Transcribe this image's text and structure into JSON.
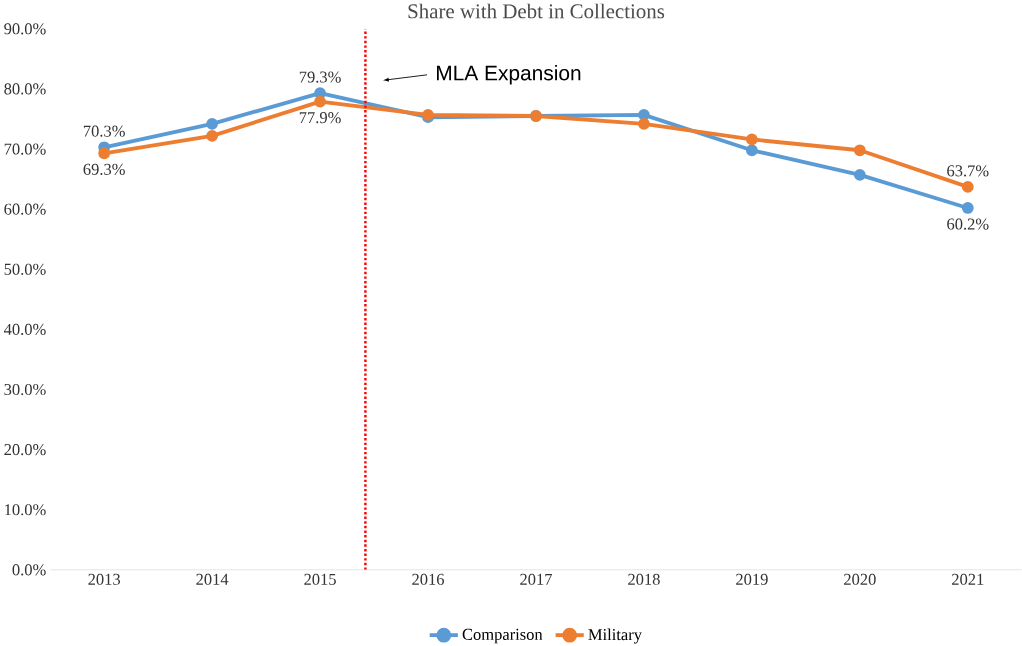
{
  "chart_data": {
    "type": "line",
    "title": "Share with Debt in Collections",
    "x": [
      2013,
      2014,
      2015,
      2016,
      2017,
      2018,
      2019,
      2020,
      2021
    ],
    "xlim": [
      2012.5,
      2021.5
    ],
    "xticks": [
      2013,
      2014,
      2015,
      2016,
      2017,
      2018,
      2019,
      2020,
      2021
    ],
    "ylim": [
      0,
      90
    ],
    "yticks": [
      {
        "value": 0,
        "label": "0.0%"
      },
      {
        "value": 10,
        "label": "10.0%"
      },
      {
        "value": 20,
        "label": "20.0%"
      },
      {
        "value": 30,
        "label": "30.0%"
      },
      {
        "value": 40,
        "label": "40.0%"
      },
      {
        "value": 50,
        "label": "50.0%"
      },
      {
        "value": 60,
        "label": "60.0%"
      },
      {
        "value": 70,
        "label": "70.0%"
      },
      {
        "value": 80,
        "label": "80.0%"
      },
      {
        "value": 90,
        "label": "90.0%"
      }
    ],
    "series": [
      {
        "name": "Comparison",
        "color": "#5b9bd5",
        "values": [
          70.3,
          74.2,
          79.3,
          75.3,
          75.5,
          75.7,
          69.8,
          65.7,
          60.2
        ],
        "value_labels": [
          "70.3%",
          null,
          "79.3%",
          null,
          null,
          null,
          null,
          null,
          "60.2%"
        ]
      },
      {
        "name": "Military",
        "color": "#ed7d31",
        "values": [
          69.3,
          72.2,
          77.9,
          75.7,
          75.5,
          74.2,
          71.6,
          69.8,
          63.7
        ],
        "value_labels": [
          "69.3%",
          null,
          "77.9%",
          null,
          null,
          null,
          null,
          null,
          "63.7%"
        ]
      }
    ],
    "marker": "circle",
    "line_style": "solid",
    "legend": "bottom",
    "grid": false,
    "ref_lines": [
      {
        "axis": "x",
        "value": 2015.42,
        "color": "#ff0000",
        "line_style": "dotted"
      }
    ],
    "annotations": [
      "MLA Expansion"
    ]
  }
}
